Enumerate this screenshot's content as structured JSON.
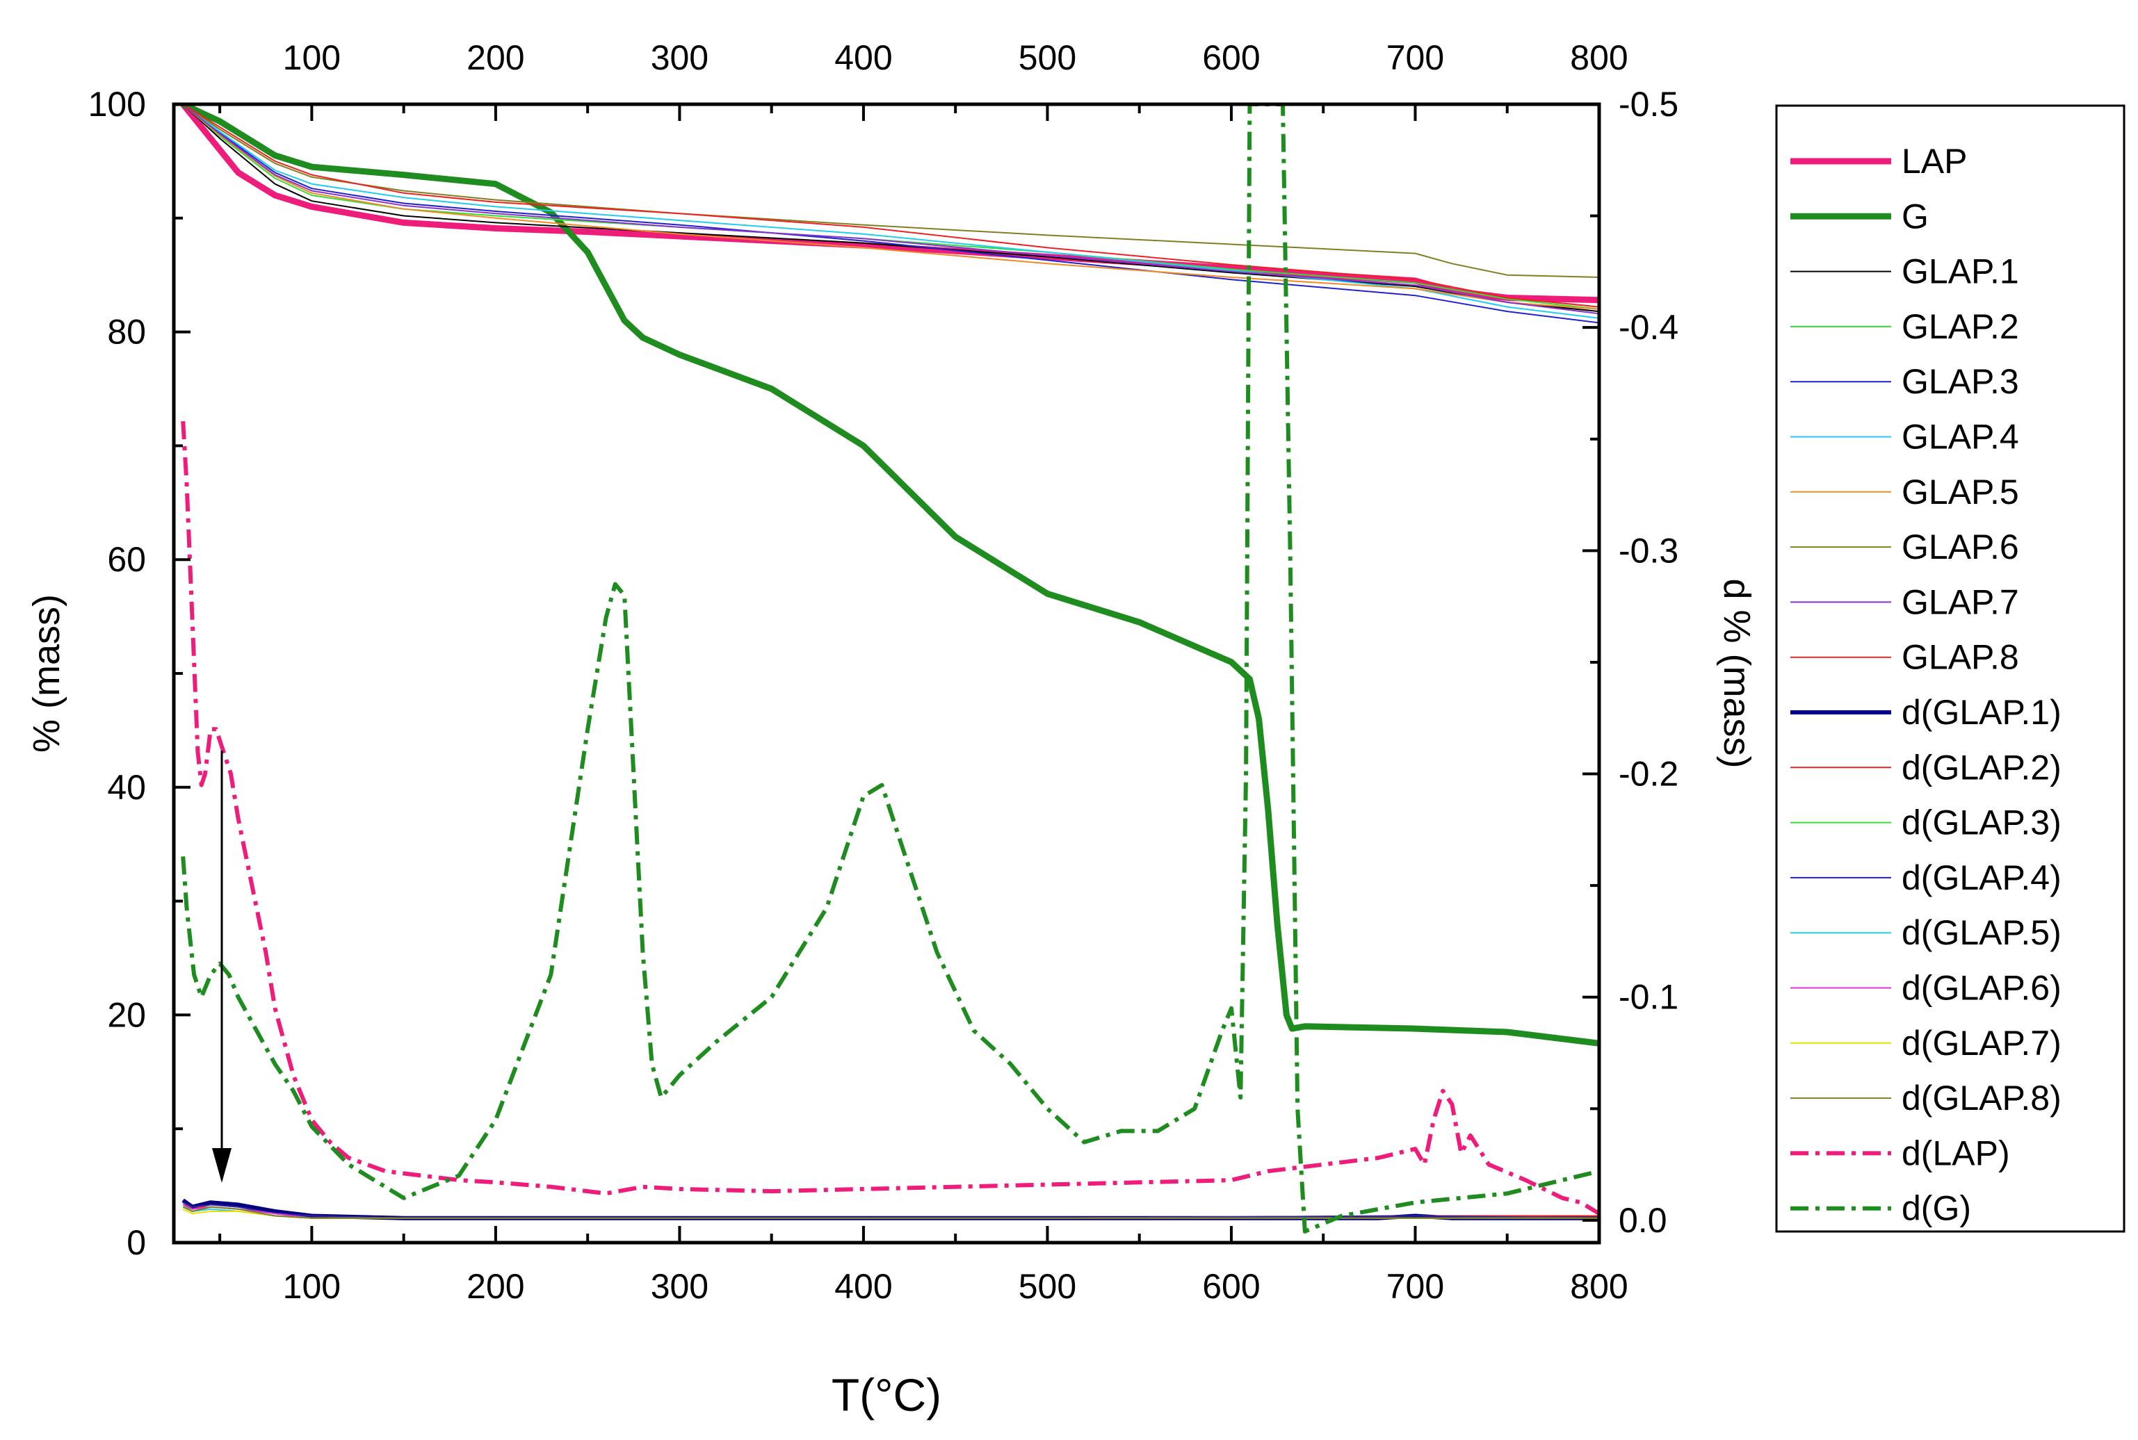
{
  "chart_data": {
    "type": "line",
    "title": "",
    "xlabel": "T(°C)",
    "ylabel_left": "% (mass)",
    "ylabel_right": "d % (mass)",
    "xlim": [
      25,
      800
    ],
    "ylim_left": [
      0,
      100
    ],
    "ylim_right": [
      0.01,
      -0.5
    ],
    "x_ticks": [
      100,
      200,
      300,
      400,
      500,
      600,
      700,
      800
    ],
    "x_tick_labels": [
      "100",
      "200",
      "300",
      "400",
      "500",
      "600",
      "700",
      "800"
    ],
    "y_left_ticks": [
      0,
      20,
      40,
      60,
      80,
      100
    ],
    "y_left_tick_labels": [
      "0",
      "20",
      "40",
      "60",
      "80",
      "100"
    ],
    "y_right_ticks": [
      0.0,
      -0.1,
      -0.2,
      -0.3,
      -0.4,
      -0.5
    ],
    "y_right_tick_labels": [
      "0.0",
      "-0.1",
      "-0.2",
      "-0.3",
      "-0.4",
      "-0.5"
    ],
    "legend_position": "right-outside",
    "annotation": "downward arrow near 50 °C pointing from d(LAP) peak (~43 %) to the d(GLAP) curves (~5 %)",
    "series": [
      {
        "name": "LAP",
        "color": "#ee1c7a",
        "width": 9,
        "dash": "solid",
        "axis": "left",
        "x": [
          30,
          40,
          60,
          80,
          100,
          150,
          200,
          250,
          300,
          400,
          500,
          600,
          650,
          700,
          720,
          750,
          800
        ],
        "y": [
          100,
          98,
          94,
          92,
          91,
          89.6,
          89.1,
          88.8,
          88.4,
          87.6,
          86.6,
          85.6,
          85.0,
          84.5,
          83.6,
          83.0,
          82.8
        ]
      },
      {
        "name": "G",
        "color": "#1e8c1e",
        "width": 9,
        "dash": "solid",
        "axis": "left",
        "x": [
          30,
          50,
          80,
          100,
          150,
          200,
          230,
          250,
          270,
          280,
          300,
          350,
          400,
          450,
          500,
          550,
          600,
          610,
          615,
          620,
          625,
          630,
          633,
          640,
          700,
          750,
          800
        ],
        "y": [
          100,
          98.5,
          95.5,
          94.5,
          93.8,
          93,
          90.5,
          87,
          81,
          79.5,
          78,
          75,
          70,
          62,
          57,
          54.5,
          51,
          49.5,
          46,
          38,
          28,
          20,
          18.8,
          19,
          18.8,
          18.5,
          17.5
        ]
      },
      {
        "name": "GLAP.1",
        "color": "#000000",
        "width": 2,
        "dash": "solid",
        "axis": "left",
        "x": [
          30,
          50,
          80,
          100,
          150,
          200,
          300,
          400,
          500,
          600,
          700,
          750,
          800
        ],
        "y": [
          100,
          97,
          93,
          91.5,
          90.2,
          89.6,
          88.7,
          87.8,
          86.6,
          85.2,
          84,
          82.6,
          81.8
        ]
      },
      {
        "name": "GLAP.2",
        "color": "#33dd33",
        "width": 2,
        "dash": "solid",
        "axis": "left",
        "x": [
          30,
          50,
          80,
          100,
          150,
          200,
          300,
          400,
          500,
          600,
          700,
          750,
          800
        ],
        "y": [
          100,
          97.2,
          93.5,
          92,
          90.8,
          90.2,
          89.2,
          88.2,
          87,
          85.5,
          84.3,
          82.9,
          82
        ]
      },
      {
        "name": "GLAP.3",
        "color": "#2222cc",
        "width": 2,
        "dash": "solid",
        "axis": "left",
        "x": [
          30,
          50,
          80,
          100,
          150,
          200,
          300,
          400,
          500,
          600,
          700,
          750,
          800
        ],
        "y": [
          100,
          97.5,
          94,
          92.6,
          91.3,
          90.6,
          89.4,
          88,
          86.3,
          84.6,
          83.2,
          81.8,
          80.8
        ]
      },
      {
        "name": "GLAP.4",
        "color": "#22ccee",
        "width": 2,
        "dash": "solid",
        "axis": "left",
        "x": [
          30,
          50,
          80,
          100,
          150,
          200,
          300,
          400,
          500,
          600,
          700,
          750,
          800
        ],
        "y": [
          100,
          97.6,
          94.2,
          93,
          91.8,
          91,
          89.8,
          88.6,
          87,
          85.4,
          83.8,
          82.2,
          81.2
        ]
      },
      {
        "name": "GLAP.5",
        "color": "#f08a24",
        "width": 2,
        "dash": "solid",
        "axis": "left",
        "x": [
          30,
          50,
          80,
          100,
          150,
          200,
          300,
          400,
          500,
          600,
          700,
          750,
          800
        ],
        "y": [
          100,
          97.3,
          93.7,
          92.2,
          90.8,
          90,
          88.6,
          87.4,
          86,
          84.8,
          83.8,
          82.6,
          82
        ]
      },
      {
        "name": "GLAP.6",
        "color": "#808020",
        "width": 2,
        "dash": "solid",
        "axis": "left",
        "x": [
          30,
          50,
          80,
          100,
          150,
          200,
          300,
          400,
          500,
          600,
          700,
          720,
          750,
          800
        ],
        "y": [
          100,
          97.8,
          94.8,
          93.6,
          92.4,
          91.6,
          90.4,
          89.4,
          88.5,
          87.7,
          86.9,
          86,
          85,
          84.8
        ]
      },
      {
        "name": "GLAP.7",
        "color": "#8833cc",
        "width": 2,
        "dash": "solid",
        "axis": "left",
        "x": [
          30,
          50,
          80,
          100,
          150,
          200,
          300,
          400,
          500,
          600,
          700,
          750,
          800
        ],
        "y": [
          100,
          97.4,
          93.8,
          92.4,
          91.1,
          90.4,
          89.2,
          88.2,
          86.7,
          85.3,
          84.1,
          82.6,
          81.6
        ]
      },
      {
        "name": "GLAP.8",
        "color": "#ee2222",
        "width": 2,
        "dash": "solid",
        "axis": "left",
        "x": [
          30,
          50,
          80,
          100,
          150,
          200,
          300,
          400,
          500,
          600,
          700,
          750,
          800
        ],
        "y": [
          100,
          98,
          95,
          93.8,
          92.2,
          91.4,
          90.4,
          89.2,
          87.4,
          85.9,
          84.6,
          83,
          82.2
        ]
      },
      {
        "name": "d(GLAP.1)",
        "color": "#000080",
        "width": 6,
        "dash": "solid",
        "axis": "right",
        "x": [
          30,
          35,
          45,
          60,
          80,
          100,
          150,
          200,
          300,
          400,
          500,
          600,
          680,
          700,
          720,
          800
        ],
        "y": [
          -0.009,
          -0.006,
          -0.008,
          -0.007,
          -0.004,
          -0.002,
          -0.001,
          -0.001,
          -0.001,
          -0.001,
          -0.001,
          -0.001,
          -0.001,
          -0.002,
          -0.001,
          -0.001
        ]
      },
      {
        "name": "d(GLAP.2)",
        "color": "#ee2222",
        "width": 2,
        "dash": "solid",
        "axis": "right",
        "x": [
          30,
          35,
          45,
          60,
          80,
          100,
          150,
          300,
          500,
          700,
          800
        ],
        "y": [
          -0.008,
          -0.005,
          -0.007,
          -0.006,
          -0.003,
          -0.002,
          -0.001,
          -0.001,
          -0.001,
          -0.002,
          -0.002
        ]
      },
      {
        "name": "d(GLAP.3)",
        "color": "#33dd33",
        "width": 2,
        "dash": "solid",
        "axis": "right",
        "x": [
          30,
          35,
          45,
          60,
          80,
          100,
          150,
          300,
          500,
          700,
          800
        ],
        "y": [
          -0.007,
          -0.004,
          -0.006,
          -0.005,
          -0.003,
          -0.001,
          -0.001,
          -0.001,
          -0.001,
          -0.001,
          -0.001
        ]
      },
      {
        "name": "d(GLAP.4)",
        "color": "#2222aa",
        "width": 2,
        "dash": "solid",
        "axis": "right",
        "x": [
          30,
          35,
          45,
          60,
          80,
          100,
          150,
          300,
          500,
          700,
          800
        ],
        "y": [
          -0.008,
          -0.006,
          -0.007,
          -0.006,
          -0.003,
          -0.002,
          -0.001,
          -0.001,
          -0.001,
          -0.002,
          -0.001
        ]
      },
      {
        "name": "d(GLAP.5)",
        "color": "#22ccee",
        "width": 2,
        "dash": "solid",
        "axis": "right",
        "x": [
          30,
          35,
          45,
          60,
          80,
          100,
          150,
          300,
          500,
          700,
          800
        ],
        "y": [
          -0.006,
          -0.004,
          -0.005,
          -0.004,
          -0.002,
          -0.001,
          -0.001,
          -0.001,
          -0.001,
          -0.001,
          -0.001
        ]
      },
      {
        "name": "d(GLAP.6)",
        "color": "#dd33dd",
        "width": 2,
        "dash": "solid",
        "axis": "right",
        "x": [
          30,
          35,
          45,
          60,
          80,
          100,
          150,
          300,
          500,
          700,
          800
        ],
        "y": [
          -0.007,
          -0.005,
          -0.006,
          -0.005,
          -0.003,
          -0.001,
          -0.001,
          -0.001,
          -0.001,
          -0.001,
          -0.001
        ]
      },
      {
        "name": "d(GLAP.7)",
        "color": "#eedd00",
        "width": 2,
        "dash": "solid",
        "axis": "right",
        "x": [
          30,
          35,
          45,
          60,
          80,
          100,
          150,
          300,
          500,
          700,
          800
        ],
        "y": [
          -0.005,
          -0.003,
          -0.004,
          -0.004,
          -0.002,
          -0.001,
          -0.001,
          -0.001,
          -0.001,
          -0.001,
          -0.001
        ]
      },
      {
        "name": "d(GLAP.8)",
        "color": "#808020",
        "width": 2,
        "dash": "solid",
        "axis": "right",
        "x": [
          30,
          35,
          45,
          60,
          80,
          100,
          150,
          300,
          500,
          700,
          800
        ],
        "y": [
          -0.006,
          -0.004,
          -0.006,
          -0.005,
          -0.002,
          -0.001,
          -0.001,
          -0.001,
          -0.001,
          -0.001,
          -0.001
        ]
      },
      {
        "name": "d(LAP)",
        "color": "#ee1c7a",
        "width": 6,
        "dash": "dashdot",
        "axis": "right",
        "x": [
          30,
          32,
          35,
          38,
          40,
          42,
          45,
          48,
          52,
          56,
          60,
          65,
          70,
          75,
          80,
          85,
          90,
          100,
          110,
          120,
          140,
          160,
          180,
          200,
          230,
          260,
          280,
          300,
          350,
          400,
          450,
          500,
          550,
          600,
          620,
          650,
          680,
          700,
          705,
          710,
          715,
          720,
          725,
          730,
          740,
          760,
          780,
          790,
          800
        ],
        "y": [
          -0.358,
          -0.33,
          -0.27,
          -0.21,
          -0.195,
          -0.2,
          -0.22,
          -0.22,
          -0.21,
          -0.2,
          -0.18,
          -0.16,
          -0.14,
          -0.12,
          -0.095,
          -0.08,
          -0.065,
          -0.045,
          -0.035,
          -0.028,
          -0.022,
          -0.02,
          -0.018,
          -0.017,
          -0.015,
          -0.012,
          -0.015,
          -0.014,
          -0.013,
          -0.014,
          -0.015,
          -0.016,
          -0.017,
          -0.018,
          -0.022,
          -0.025,
          -0.028,
          -0.032,
          -0.025,
          -0.045,
          -0.058,
          -0.052,
          -0.03,
          -0.038,
          -0.025,
          -0.018,
          -0.01,
          -0.008,
          -0.003
        ]
      },
      {
        "name": "d(G)",
        "color": "#1e8c1e",
        "width": 6,
        "dash": "dashdot",
        "axis": "right",
        "x": [
          30,
          32,
          36,
          40,
          45,
          50,
          55,
          60,
          70,
          80,
          90,
          100,
          120,
          150,
          180,
          200,
          230,
          250,
          260,
          265,
          270,
          275,
          280,
          285,
          290,
          300,
          320,
          350,
          380,
          400,
          410,
          420,
          440,
          460,
          480,
          500,
          520,
          540,
          560,
          580,
          595,
          600,
          605,
          608,
          610,
          615,
          620,
          625,
          628,
          632,
          636,
          640,
          660,
          700,
          750,
          800
        ],
        "y": [
          -0.163,
          -0.14,
          -0.11,
          -0.1,
          -0.11,
          -0.115,
          -0.11,
          -0.1,
          -0.085,
          -0.07,
          -0.058,
          -0.042,
          -0.025,
          -0.01,
          -0.02,
          -0.045,
          -0.11,
          -0.22,
          -0.27,
          -0.285,
          -0.28,
          -0.2,
          -0.12,
          -0.07,
          -0.055,
          -0.065,
          -0.08,
          -0.1,
          -0.14,
          -0.19,
          -0.195,
          -0.17,
          -0.12,
          -0.085,
          -0.07,
          -0.05,
          -0.035,
          -0.04,
          -0.04,
          -0.05,
          -0.085,
          -0.095,
          -0.055,
          -0.2,
          -0.5,
          -0.5,
          -0.5,
          -0.5,
          -0.5,
          -0.3,
          -0.05,
          0.005,
          -0.002,
          -0.008,
          -0.012,
          -0.022
        ]
      }
    ]
  }
}
